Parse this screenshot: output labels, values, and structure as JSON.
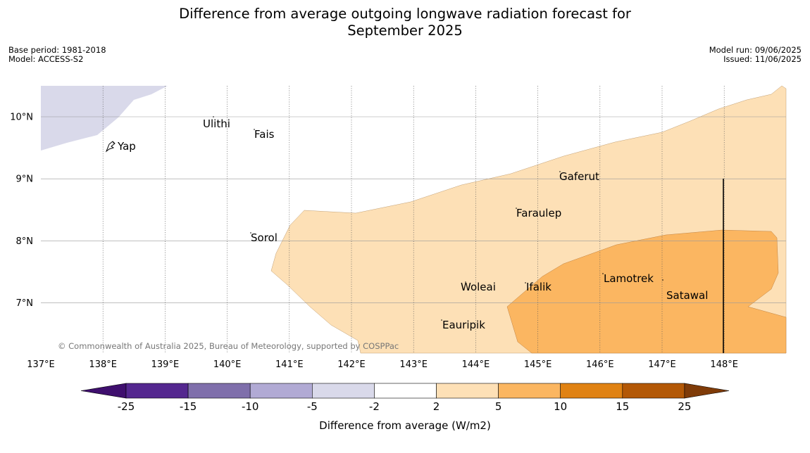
{
  "title_line1": "Difference from average outgoing longwave radiation forecast for",
  "title_line2": "September 2025",
  "meta_left": {
    "base_period": "Base period: 1981-2018",
    "model": "Model: ACCESS-S2"
  },
  "meta_right": {
    "model_run": "Model run: 09/06/2025",
    "issued": "Issued: 11/06/2025"
  },
  "copyright": "© Commonwealth of Australia 2025, Bureau of Meteorology, supported by COSPPac",
  "lon_labels": [
    "137°E",
    "138°E",
    "139°E",
    "140°E",
    "141°E",
    "142°E",
    "143°E",
    "144°E",
    "145°E",
    "146°E",
    "147°E",
    "148°E"
  ],
  "lat_labels": [
    "10°N",
    "9°N",
    "8°N",
    "7°N"
  ],
  "places": [
    "Ulithi",
    "Fais",
    "Yap",
    "Gaferut",
    "Faraulep",
    "Sorol",
    "Woleai",
    "Ifalik",
    "Lamotrek",
    "Satawal",
    "Eauripik"
  ],
  "colorbar": {
    "title": "Difference from average (W/m2)",
    "ticks": [
      "-25",
      "-15",
      "-10",
      "-5",
      "-2",
      "2",
      "5",
      "10",
      "15",
      "25"
    ],
    "colors": [
      "#3f0f6e",
      "#54278f",
      "#7f6fab",
      "#b1aad4",
      "#d9d9ea",
      "#ffffff",
      "#fde0b6",
      "#fbb661",
      "#e08213",
      "#b35806",
      "#7f3b08"
    ]
  }
}
